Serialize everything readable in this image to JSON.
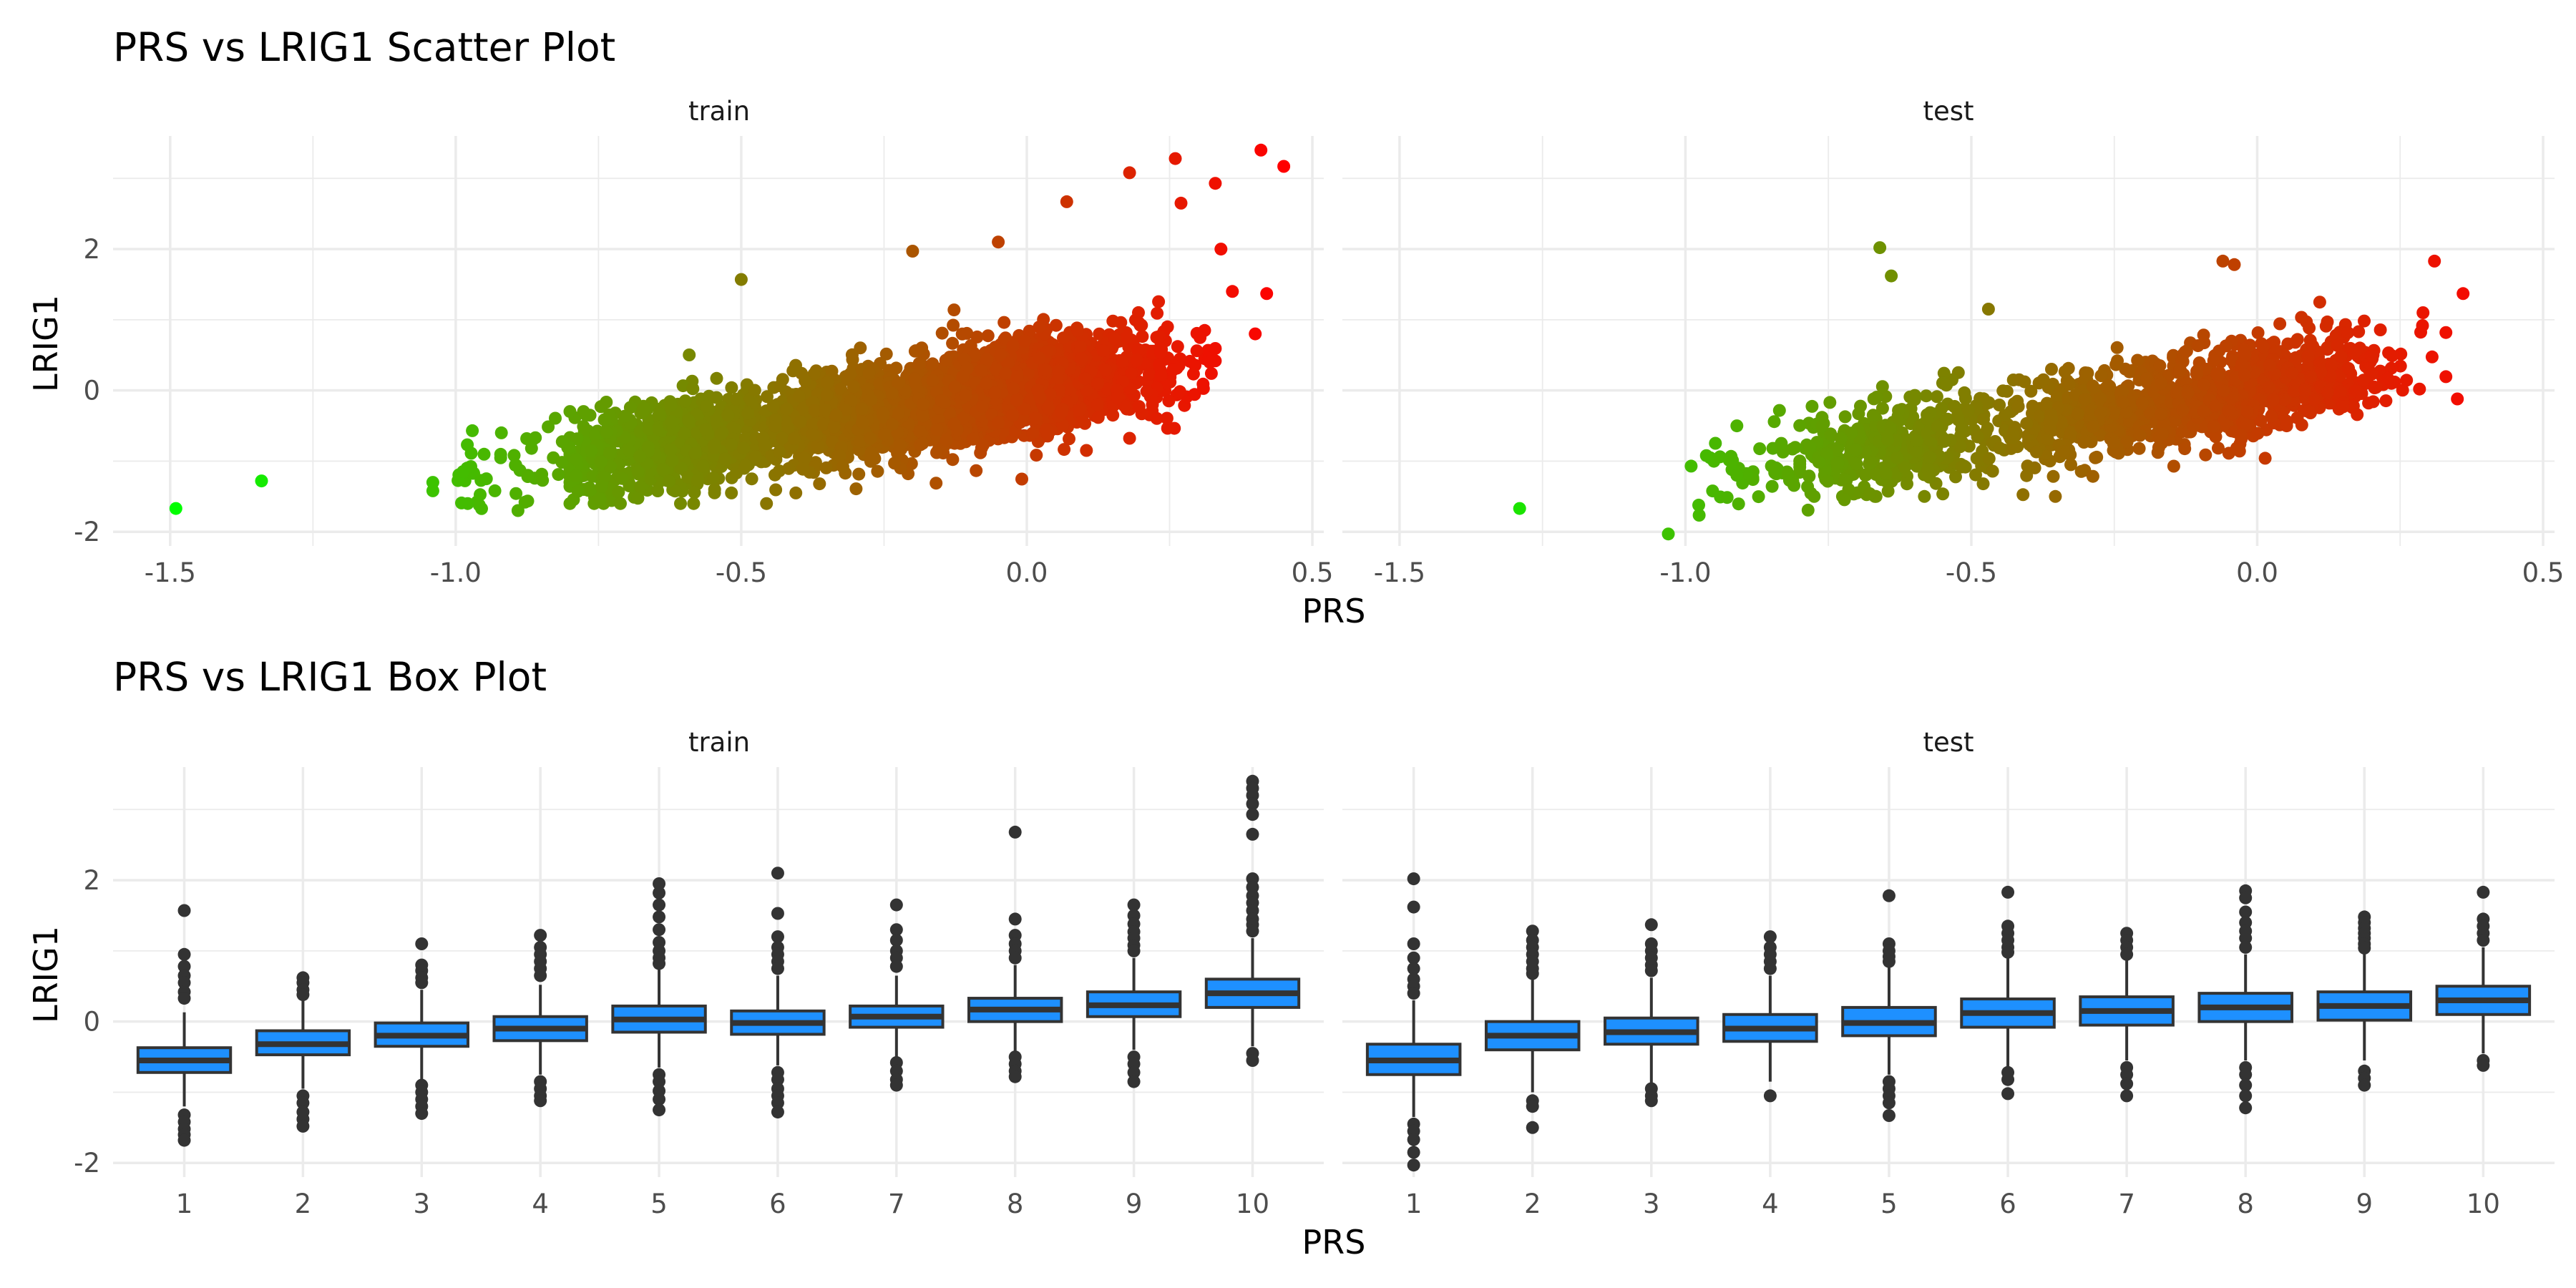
{
  "figure": {
    "scatter_title": "PRS vs LRIG1 Scatter Plot",
    "box_title": "PRS vs LRIG1 Box Plot",
    "panel_labels": [
      "train",
      "test"
    ],
    "xlabel": "PRS",
    "ylabel": "LRIG1"
  },
  "colors": {
    "point_low": "#00ff00",
    "point_high": "#ff0000",
    "box_fill": "#1e90ff",
    "box_line": "#333333",
    "outlier": "#333333",
    "grid": "#ebebeb"
  },
  "chart_data": [
    {
      "type": "scatter",
      "title": "PRS vs LRIG1 Scatter Plot",
      "xlabel": "PRS",
      "ylabel": "LRIG1",
      "facets": [
        "train",
        "test"
      ],
      "xlim": [
        -1.6,
        0.52
      ],
      "ylim": [
        -2.2,
        3.6
      ],
      "xticks": [
        "-1.5",
        "-1.0",
        "-0.5",
        "0.0",
        "0.5"
      ],
      "yticks": [
        "-2",
        "0",
        "2"
      ],
      "color_scale": "gradient green (low PRS) to red (high PRS)",
      "grid": true,
      "panels": [
        {
          "name": "train",
          "n_approx": 5000,
          "relationship": {
            "slope": 1.3,
            "intercept": 0.05
          },
          "bulk": {
            "prs_range": [
              -0.75,
              0.3
            ],
            "lrig1_range": [
              -1.6,
              1.8
            ]
          },
          "notable_points": [
            [
              -1.49,
              -1.67
            ],
            [
              -1.34,
              -1.28
            ],
            [
              -1.04,
              -1.42
            ],
            [
              -1.04,
              -1.3
            ],
            [
              -0.92,
              -0.6
            ],
            [
              -0.5,
              1.57
            ],
            [
              -0.2,
              1.97
            ],
            [
              -0.05,
              2.1
            ],
            [
              0.07,
              2.67
            ],
            [
              0.18,
              3.08
            ],
            [
              0.26,
              3.28
            ],
            [
              0.27,
              2.65
            ],
            [
              0.33,
              2.93
            ],
            [
              0.41,
              3.4
            ],
            [
              0.45,
              3.17
            ],
            [
              0.34,
              2.0
            ],
            [
              0.36,
              1.4
            ],
            [
              0.42,
              1.37
            ],
            [
              0.4,
              0.8
            ]
          ]
        },
        {
          "name": "test",
          "n_approx": 2200,
          "relationship": {
            "slope": 1.3,
            "intercept": 0.05
          },
          "bulk": {
            "prs_range": [
              -0.75,
              0.3
            ],
            "lrig1_range": [
              -1.5,
              1.8
            ]
          },
          "notable_points": [
            [
              -1.29,
              -1.67
            ],
            [
              -1.03,
              -2.03
            ],
            [
              -0.99,
              -1.07
            ],
            [
              -0.91,
              -0.5
            ],
            [
              -0.91,
              -1.2
            ],
            [
              -0.66,
              2.02
            ],
            [
              -0.64,
              1.62
            ],
            [
              -0.47,
              1.15
            ],
            [
              -0.06,
              1.83
            ],
            [
              -0.04,
              1.78
            ],
            [
              0.31,
              1.83
            ],
            [
              0.36,
              1.37
            ],
            [
              0.35,
              -0.12
            ],
            [
              0.29,
              1.1
            ]
          ]
        }
      ]
    },
    {
      "type": "box",
      "title": "PRS vs LRIG1 Box Plot",
      "xlabel": "PRS",
      "ylabel": "LRIG1",
      "facets": [
        "train",
        "test"
      ],
      "categories": [
        "1",
        "2",
        "3",
        "4",
        "5",
        "6",
        "7",
        "8",
        "9",
        "10"
      ],
      "ylim": [
        -2.2,
        3.6
      ],
      "yticks": [
        "-2",
        "0",
        "2"
      ],
      "panels": [
        {
          "name": "train",
          "boxes": [
            {
              "q1": -0.72,
              "median": -0.55,
              "q3": -0.37,
              "whisker_low": -1.2,
              "whisker_high": 0.13,
              "outliers": [
                1.57,
                0.95,
                0.78,
                0.65,
                0.55,
                0.42,
                0.33,
                -1.32,
                -1.42,
                -1.52,
                -1.6,
                -1.68
              ]
            },
            {
              "q1": -0.47,
              "median": -0.32,
              "q3": -0.13,
              "whisker_low": -0.95,
              "whisker_high": 0.32,
              "outliers": [
                0.62,
                0.55,
                0.45,
                0.38,
                -1.05,
                -1.15,
                -1.28,
                -1.38,
                -1.48
              ]
            },
            {
              "q1": -0.35,
              "median": -0.2,
              "q3": -0.02,
              "whisker_low": -0.82,
              "whisker_high": 0.45,
              "outliers": [
                1.1,
                0.8,
                0.72,
                0.62,
                0.55,
                -0.9,
                -1.0,
                -1.1,
                -1.2,
                -1.3
              ]
            },
            {
              "q1": -0.27,
              "median": -0.1,
              "q3": 0.07,
              "whisker_low": -0.75,
              "whisker_high": 0.52,
              "outliers": [
                1.22,
                1.05,
                0.95,
                0.85,
                0.75,
                0.65,
                -0.85,
                -0.95,
                -1.05,
                -1.12
              ]
            },
            {
              "q1": -0.15,
              "median": 0.03,
              "q3": 0.22,
              "whisker_low": -0.65,
              "whisker_high": 0.75,
              "outliers": [
                1.95,
                1.82,
                1.65,
                1.48,
                1.3,
                1.12,
                1.0,
                0.9,
                0.82,
                -0.75,
                -0.85,
                -0.98,
                -1.1,
                -1.25
              ]
            },
            {
              "q1": -0.18,
              "median": -0.02,
              "q3": 0.15,
              "whisker_low": -0.62,
              "whisker_high": 0.65,
              "outliers": [
                2.1,
                1.53,
                1.2,
                1.05,
                0.95,
                0.85,
                0.75,
                -0.72,
                -0.82,
                -0.95,
                -1.05,
                -1.15,
                -1.28
              ]
            },
            {
              "q1": -0.08,
              "median": 0.07,
              "q3": 0.22,
              "whisker_low": -0.5,
              "whisker_high": 0.65,
              "outliers": [
                1.65,
                1.3,
                1.15,
                1.0,
                0.9,
                0.78,
                -0.58,
                -0.7,
                -0.82,
                -0.9
              ]
            },
            {
              "q1": 0.0,
              "median": 0.17,
              "q3": 0.33,
              "whisker_low": -0.45,
              "whisker_high": 0.8,
              "outliers": [
                2.68,
                1.45,
                1.22,
                1.1,
                1.0,
                0.9,
                -0.5,
                -0.6,
                -0.7,
                -0.78
              ]
            },
            {
              "q1": 0.07,
              "median": 0.23,
              "q3": 0.42,
              "whisker_low": -0.4,
              "whisker_high": 0.9,
              "outliers": [
                1.65,
                1.5,
                1.38,
                1.27,
                1.18,
                1.08,
                1.0,
                -0.5,
                -0.6,
                -0.72,
                -0.85
              ]
            },
            {
              "q1": 0.2,
              "median": 0.4,
              "q3": 0.6,
              "whisker_low": -0.35,
              "whisker_high": 1.18,
              "outliers": [
                3.4,
                3.3,
                3.2,
                3.08,
                2.93,
                2.65,
                2.02,
                1.9,
                1.78,
                1.68,
                1.57,
                1.45,
                1.37,
                1.28,
                -0.45,
                -0.55
              ]
            }
          ]
        },
        {
          "name": "test",
          "boxes": [
            {
              "q1": -0.75,
              "median": -0.55,
              "q3": -0.32,
              "whisker_low": -1.35,
              "whisker_high": 0.3,
              "outliers": [
                2.02,
                1.62,
                1.1,
                0.9,
                0.75,
                0.6,
                0.5,
                0.4,
                -1.45,
                -1.55,
                -1.67,
                -1.85,
                -2.03
              ]
            },
            {
              "q1": -0.4,
              "median": -0.2,
              "q3": 0.0,
              "whisker_low": -1.0,
              "whisker_high": 0.6,
              "outliers": [
                1.28,
                1.15,
                1.05,
                0.95,
                0.85,
                0.75,
                0.68,
                -1.12,
                -1.2,
                -1.5
              ]
            },
            {
              "q1": -0.32,
              "median": -0.15,
              "q3": 0.05,
              "whisker_low": -0.88,
              "whisker_high": 0.62,
              "outliers": [
                1.37,
                1.1,
                1.0,
                0.9,
                0.8,
                0.72,
                -0.95,
                -1.05,
                -1.12
              ]
            },
            {
              "q1": -0.28,
              "median": -0.1,
              "q3": 0.1,
              "whisker_low": -0.85,
              "whisker_high": 0.65,
              "outliers": [
                1.2,
                1.05,
                0.95,
                0.85,
                0.75,
                -1.05
              ]
            },
            {
              "q1": -0.2,
              "median": -0.02,
              "q3": 0.2,
              "whisker_low": -0.75,
              "whisker_high": 0.78,
              "outliers": [
                1.78,
                1.1,
                1.0,
                0.92,
                0.85,
                -0.85,
                -0.95,
                -1.05,
                -1.15,
                -1.33
              ]
            },
            {
              "q1": -0.08,
              "median": 0.12,
              "q3": 0.32,
              "whisker_low": -0.65,
              "whisker_high": 0.9,
              "outliers": [
                1.83,
                1.35,
                1.25,
                1.15,
                1.05,
                0.98,
                -0.72,
                -0.82,
                -1.02
              ]
            },
            {
              "q1": -0.05,
              "median": 0.15,
              "q3": 0.35,
              "whisker_low": -0.55,
              "whisker_high": 0.9,
              "outliers": [
                1.25,
                1.15,
                1.05,
                0.95,
                -0.65,
                -0.75,
                -0.88,
                -1.05
              ]
            },
            {
              "q1": 0.0,
              "median": 0.2,
              "q3": 0.4,
              "whisker_low": -0.55,
              "whisker_high": 0.95,
              "outliers": [
                1.85,
                1.75,
                1.55,
                1.4,
                1.28,
                1.18,
                1.05,
                -0.65,
                -0.75,
                -0.9,
                -1.05,
                -1.22
              ]
            },
            {
              "q1": 0.02,
              "median": 0.22,
              "q3": 0.42,
              "whisker_low": -0.55,
              "whisker_high": 0.98,
              "outliers": [
                1.48,
                1.4,
                1.32,
                1.25,
                1.18,
                1.1,
                1.04,
                -0.7,
                -0.8,
                -0.9
              ]
            },
            {
              "q1": 0.1,
              "median": 0.3,
              "q3": 0.5,
              "whisker_low": -0.45,
              "whisker_high": 1.05,
              "outliers": [
                1.83,
                1.45,
                1.35,
                1.25,
                1.15,
                -0.55,
                -0.62
              ]
            }
          ]
        }
      ]
    }
  ]
}
